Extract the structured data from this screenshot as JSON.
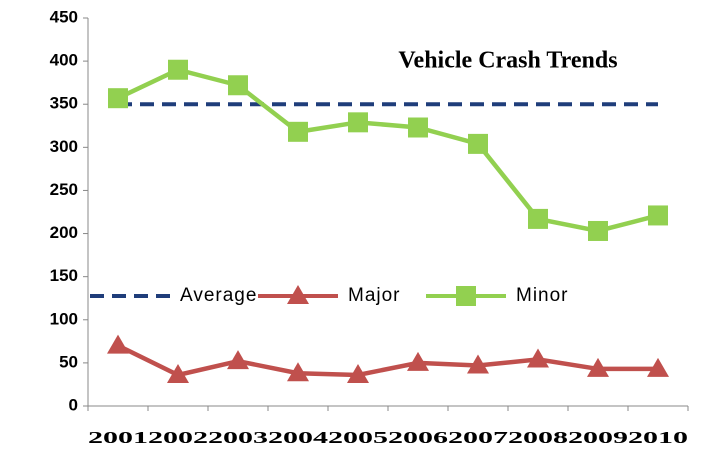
{
  "chart_data": {
    "type": "line",
    "title": "Vehicle Crash Trends",
    "categories": [
      "2001",
      "2002",
      "2003",
      "2004",
      "2005",
      "2006",
      "2007",
      "2008",
      "2009",
      "2010"
    ],
    "series": [
      {
        "name": "Average",
        "color": "#1f3d7a",
        "style": "dashed",
        "values": [
          350,
          350,
          350,
          350,
          350,
          350,
          350,
          350,
          350,
          350
        ]
      },
      {
        "name": "Major",
        "color": "#c0504d",
        "marker": "triangle",
        "values": [
          70,
          36,
          52,
          38,
          36,
          50,
          47,
          54,
          43,
          43
        ]
      },
      {
        "name": "Minor",
        "color": "#92d050",
        "marker": "square",
        "values": [
          357,
          390,
          372,
          318,
          329,
          323,
          304,
          217,
          203,
          221
        ]
      }
    ],
    "ylim": [
      0,
      450
    ],
    "yticks": [
      0,
      50,
      100,
      150,
      200,
      250,
      300,
      350,
      400,
      450
    ],
    "grid": false
  }
}
